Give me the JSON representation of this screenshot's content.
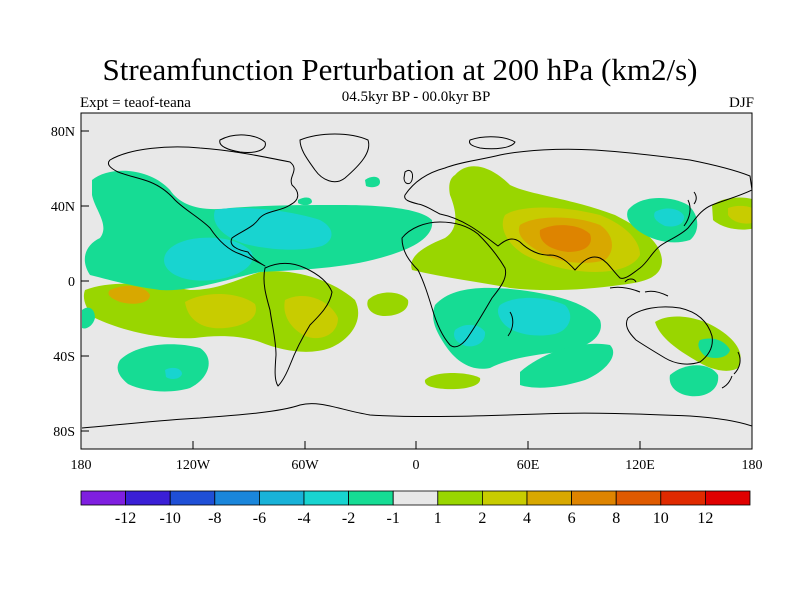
{
  "title": "Streamfunction Perturbation at 200 hPa (km2/s)",
  "subtitle": "04.5kyr BP - 00.0kyr BP",
  "left_label": "Expt = teaof-teana",
  "right_label": "DJF",
  "lat_ticks": [
    "80N",
    "40N",
    "0",
    "40S",
    "80S"
  ],
  "lon_ticks": [
    "180",
    "120W",
    "60W",
    "0",
    "60E",
    "120E",
    "180"
  ],
  "colorbar": {
    "labels": [
      "-12",
      "-10",
      "-8",
      "-6",
      "-4",
      "-2",
      "-1",
      "1",
      "2",
      "4",
      "6",
      "8",
      "10",
      "12"
    ],
    "colors": [
      "#7f1fe0",
      "#3a1fd6",
      "#1f4fd6",
      "#1a86db",
      "#18b2d8",
      "#18d4d0",
      "#16dc94",
      "#e8e8e8",
      "#99d600",
      "#c8cc00",
      "#d8a800",
      "#de8400",
      "#df5a00",
      "#e02a00",
      "#e00000"
    ]
  },
  "colors": {
    "background": "#e8e8e8",
    "pos_1_2": "#99d600",
    "pos_2_4": "#c8cc00",
    "pos_4_6": "#d8a800",
    "pos_6_8": "#de8400",
    "neg_1_2": "#16dc94",
    "neg_2_4": "#18d4d0"
  }
}
